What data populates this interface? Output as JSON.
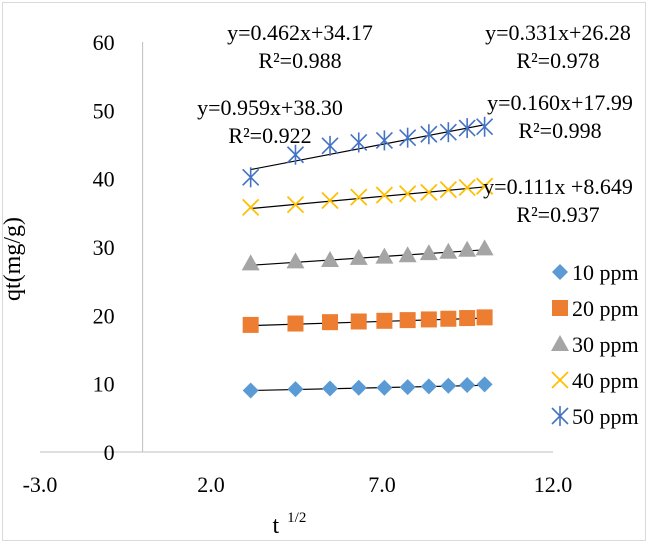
{
  "chart_data": {
    "type": "scatter",
    "xlabel": "t",
    "xlabel_sup": "1/2",
    "ylabel": "qt(mg/g)",
    "xlim": [
      -3.0,
      12.0
    ],
    "ylim": [
      0,
      60
    ],
    "x_ticks": [
      -3.0,
      2.0,
      7.0,
      12.0
    ],
    "x_tick_labels": [
      "-3.0",
      "2.0",
      "7.0",
      "12.0"
    ],
    "y_ticks": [
      0,
      10,
      20,
      30,
      40,
      50,
      60
    ],
    "y_tick_labels": [
      "0",
      "10",
      "20",
      "30",
      "40",
      "50",
      "60"
    ],
    "grid": false,
    "legend_position": "right",
    "x": [
      3.16,
      4.47,
      5.48,
      6.32,
      7.07,
      7.75,
      8.37,
      8.94,
      9.49,
      10.0
    ],
    "series": [
      {
        "name": "10 ppm",
        "marker": "diamond",
        "color": "#5b9bd5",
        "values": [
          9.0,
          9.2,
          9.3,
          9.4,
          9.4,
          9.5,
          9.6,
          9.7,
          9.8,
          9.9
        ],
        "fit": {
          "slope": 0.111,
          "intercept": 8.649
        }
      },
      {
        "name": "20 ppm",
        "marker": "square",
        "color": "#ed7d31",
        "values": [
          18.6,
          18.8,
          19.0,
          19.1,
          19.2,
          19.3,
          19.4,
          19.5,
          19.6,
          19.7
        ],
        "fit": {
          "slope": 0.16,
          "intercept": 17.99
        }
      },
      {
        "name": "30 ppm",
        "marker": "triangle",
        "color": "#a5a5a5",
        "values": [
          27.6,
          27.9,
          28.1,
          28.4,
          28.6,
          28.8,
          29.1,
          29.3,
          29.6,
          29.8
        ],
        "fit": {
          "slope": 0.331,
          "intercept": 26.28
        }
      },
      {
        "name": "40 ppm",
        "marker": "x",
        "color": "#ffc000",
        "values": [
          35.8,
          36.2,
          36.8,
          37.3,
          37.6,
          37.8,
          38.0,
          38.4,
          38.7,
          38.9
        ],
        "fit": {
          "slope": 0.462,
          "intercept": 34.17
        }
      },
      {
        "name": "50 ppm",
        "marker": "star",
        "color": "#4472c4",
        "values": [
          40.2,
          43.5,
          44.8,
          45.3,
          45.6,
          46.0,
          46.5,
          46.8,
          47.4,
          47.6
        ],
        "fit": {
          "slope": 0.959,
          "intercept": 38.3
        }
      }
    ],
    "annotations": [
      {
        "eq": "y=0.462x+34.17",
        "r2": "R²=0.988"
      },
      {
        "eq": "y=0.331x+26.28",
        "r2": "R²=0.978"
      },
      {
        "eq": "y=0.959x+38.30",
        "r2": "R²=0.922"
      },
      {
        "eq": "y=0.160x+17.99",
        "r2": "R²=0.998"
      },
      {
        "eq": "y=0.111x +8.649",
        "r2": "R²=0.937"
      }
    ]
  }
}
